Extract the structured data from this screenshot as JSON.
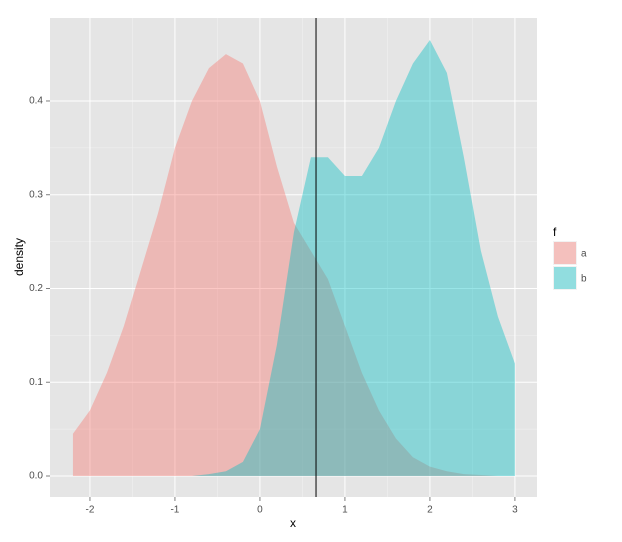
{
  "chart_data": {
    "type": "area",
    "x_label": "x",
    "y_label": "density",
    "legend_title": "f",
    "x": [
      -2.2,
      -2.0,
      -1.8,
      -1.6,
      -1.4,
      -1.2,
      -1.0,
      -0.8,
      -0.6,
      -0.4,
      -0.2,
      0,
      0.2,
      0.4,
      0.6,
      0.8,
      1.0,
      1.2,
      1.4,
      1.6,
      1.8,
      2.0,
      2.2,
      2.4,
      2.6,
      2.8,
      3.0
    ],
    "series": [
      {
        "name": "a",
        "color": "#F8766D",
        "values": [
          0.045,
          0.07,
          0.11,
          0.16,
          0.22,
          0.28,
          0.35,
          0.4,
          0.435,
          0.45,
          0.44,
          0.4,
          0.33,
          0.27,
          0.24,
          0.21,
          0.16,
          0.11,
          0.07,
          0.04,
          0.02,
          0.01,
          0.005,
          0.002,
          0.001,
          0,
          0
        ]
      },
      {
        "name": "b",
        "color": "#00BFC4",
        "values": [
          0,
          0,
          0,
          0,
          0,
          0,
          0,
          0,
          0.002,
          0.005,
          0.015,
          0.05,
          0.14,
          0.26,
          0.34,
          0.34,
          0.32,
          0.32,
          0.35,
          0.4,
          0.44,
          0.465,
          0.43,
          0.34,
          0.24,
          0.17,
          0.12
        ]
      }
    ],
    "vline": 0.66,
    "xlim": [
      -2.47,
      3.26
    ],
    "xticks": [
      -2,
      -1,
      0,
      1,
      2,
      3
    ],
    "ylim": [
      -0.0224,
      0.4885
    ],
    "yticks": [
      {
        "value": 0,
        "label": "0.0"
      },
      0.1,
      0.2,
      0.3,
      0.4
    ],
    "grid": true
  }
}
